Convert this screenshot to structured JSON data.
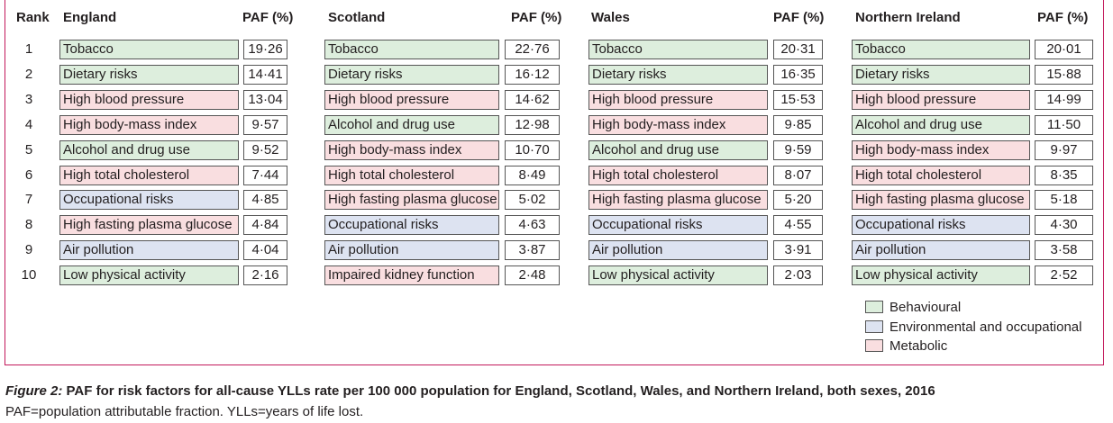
{
  "header": {
    "rank_label": "Rank"
  },
  "category_colors": {
    "behavioural": "#ddeedd",
    "environmental": "#dde3f1",
    "metabolic": "#f9dee0"
  },
  "ranks": [
    "1",
    "2",
    "3",
    "4",
    "5",
    "6",
    "7",
    "8",
    "9",
    "10"
  ],
  "countries": [
    {
      "name": "England",
      "paf_label": "PAF (%)",
      "rows": [
        {
          "risk": "Tobacco",
          "paf": "19·26",
          "category": "behavioural"
        },
        {
          "risk": "Dietary risks",
          "paf": "14·41",
          "category": "behavioural"
        },
        {
          "risk": "High blood pressure",
          "paf": "13·04",
          "category": "metabolic"
        },
        {
          "risk": "High body-mass index",
          "paf": "9·57",
          "category": "metabolic"
        },
        {
          "risk": "Alcohol and drug use",
          "paf": "9·52",
          "category": "behavioural"
        },
        {
          "risk": "High total cholesterol",
          "paf": "7·44",
          "category": "metabolic"
        },
        {
          "risk": "Occupational risks",
          "paf": "4·85",
          "category": "environmental"
        },
        {
          "risk": "High fasting plasma glucose",
          "paf": "4·84",
          "category": "metabolic"
        },
        {
          "risk": "Air pollution",
          "paf": "4·04",
          "category": "environmental"
        },
        {
          "risk": "Low physical activity",
          "paf": "2·16",
          "category": "behavioural"
        }
      ]
    },
    {
      "name": "Scotland",
      "paf_label": "PAF (%)",
      "rows": [
        {
          "risk": "Tobacco",
          "paf": "22·76",
          "category": "behavioural"
        },
        {
          "risk": "Dietary risks",
          "paf": "16·12",
          "category": "behavioural"
        },
        {
          "risk": "High blood pressure",
          "paf": "14·62",
          "category": "metabolic"
        },
        {
          "risk": "Alcohol and drug use",
          "paf": "12·98",
          "category": "behavioural"
        },
        {
          "risk": "High body-mass index",
          "paf": "10·70",
          "category": "metabolic"
        },
        {
          "risk": "High total cholesterol",
          "paf": "8·49",
          "category": "metabolic"
        },
        {
          "risk": "High fasting plasma glucose",
          "paf": "5·02",
          "category": "metabolic"
        },
        {
          "risk": "Occupational risks",
          "paf": "4·63",
          "category": "environmental"
        },
        {
          "risk": "Air pollution",
          "paf": "3·87",
          "category": "environmental"
        },
        {
          "risk": "Impaired kidney function",
          "paf": "2·48",
          "category": "metabolic"
        }
      ]
    },
    {
      "name": "Wales",
      "paf_label": "PAF (%)",
      "rows": [
        {
          "risk": "Tobacco",
          "paf": "20·31",
          "category": "behavioural"
        },
        {
          "risk": "Dietary risks",
          "paf": "16·35",
          "category": "behavioural"
        },
        {
          "risk": "High blood pressure",
          "paf": "15·53",
          "category": "metabolic"
        },
        {
          "risk": "High body-mass index",
          "paf": "9·85",
          "category": "metabolic"
        },
        {
          "risk": "Alcohol and drug use",
          "paf": "9·59",
          "category": "behavioural"
        },
        {
          "risk": "High total cholesterol",
          "paf": "8·07",
          "category": "metabolic"
        },
        {
          "risk": "High fasting plasma glucose",
          "paf": "5·20",
          "category": "metabolic"
        },
        {
          "risk": "Occupational risks",
          "paf": "4·55",
          "category": "environmental"
        },
        {
          "risk": "Air pollution",
          "paf": "3·91",
          "category": "environmental"
        },
        {
          "risk": "Low physical activity",
          "paf": "2·03",
          "category": "behavioural"
        }
      ]
    },
    {
      "name": "Northern Ireland",
      "paf_label": "PAF (%)",
      "rows": [
        {
          "risk": "Tobacco",
          "paf": "20·01",
          "category": "behavioural"
        },
        {
          "risk": "Dietary risks",
          "paf": "15·88",
          "category": "behavioural"
        },
        {
          "risk": "High blood pressure",
          "paf": "14·99",
          "category": "metabolic"
        },
        {
          "risk": "Alcohol and drug use",
          "paf": "11·50",
          "category": "behavioural"
        },
        {
          "risk": "High body-mass index",
          "paf": "9·97",
          "category": "metabolic"
        },
        {
          "risk": "High total cholesterol",
          "paf": "8·35",
          "category": "metabolic"
        },
        {
          "risk": "High fasting plasma glucose",
          "paf": "5·18",
          "category": "metabolic"
        },
        {
          "risk": "Occupational risks",
          "paf": "4·30",
          "category": "environmental"
        },
        {
          "risk": "Air pollution",
          "paf": "3·58",
          "category": "environmental"
        },
        {
          "risk": "Low physical activity",
          "paf": "2·52",
          "category": "behavioural"
        }
      ]
    }
  ],
  "legend": [
    {
      "label": "Behavioural",
      "category": "behavioural"
    },
    {
      "label": "Environmental and occupational",
      "category": "environmental"
    },
    {
      "label": "Metabolic",
      "category": "metabolic"
    }
  ],
  "caption": {
    "figure_label": "Figure 2:",
    "title": "PAF for risk factors for all-cause YLLs rate per 100 000 population for England, Scotland, Wales, and Northern Ireland, both sexes, 2016",
    "footnote": "PAF=population attributable fraction. YLLs=years of life lost."
  }
}
